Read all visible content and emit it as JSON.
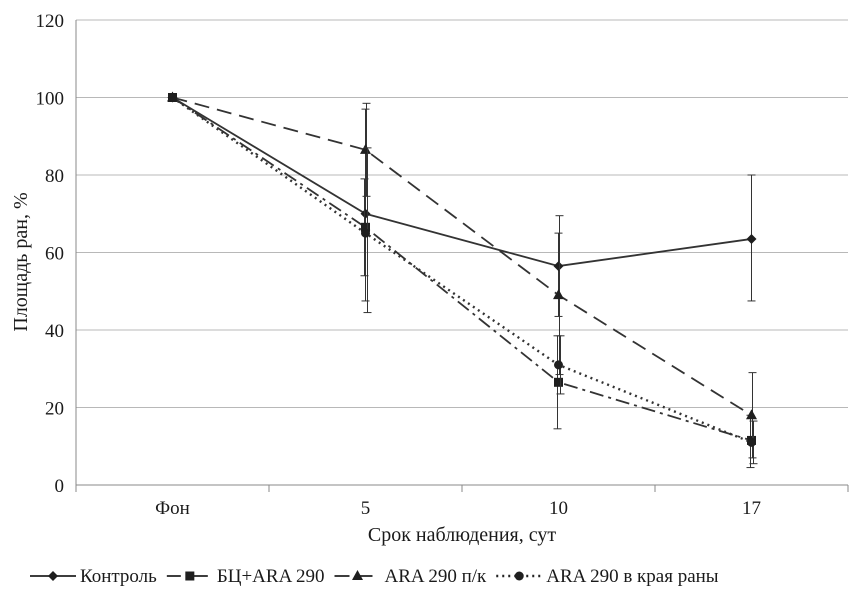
{
  "chart_data": {
    "type": "line",
    "title": "",
    "xlabel": "Срок наблюдения, сут",
    "ylabel": "Площадь ран, %",
    "categories": [
      "Фон",
      "5",
      "10",
      "17"
    ],
    "ylim": [
      0,
      120
    ],
    "yticks": [
      0,
      20,
      40,
      60,
      80,
      100,
      120
    ],
    "grid": true,
    "legend_position": "bottom",
    "series": [
      {
        "name": "Контроль",
        "values": [
          100,
          70,
          56.5,
          63.5
        ],
        "error_low": [
          null,
          47.5,
          43.5,
          47.5
        ],
        "error_high": [
          null,
          97,
          65,
          80
        ],
        "marker": "diamond",
        "dash": "solid",
        "color": "#333333"
      },
      {
        "name": "БЦ+ARA 290",
        "values": [
          100,
          66.5,
          26.5,
          11.5
        ],
        "error_low": [
          null,
          54,
          14.5,
          4.5
        ],
        "error_high": [
          null,
          79,
          38.5,
          18
        ],
        "marker": "square",
        "dash": "dashdot",
        "color": "#333333"
      },
      {
        "name": "ARA 290 п/к",
        "values": [
          100,
          86.5,
          49,
          18
        ],
        "error_low": [
          null,
          74.5,
          28.5,
          7
        ],
        "error_high": [
          null,
          98.5,
          69.5,
          29
        ],
        "marker": "triangle",
        "dash": "dash",
        "color": "#333333"
      },
      {
        "name": "ARA 290 в края раны",
        "values": [
          100,
          65,
          31,
          11
        ],
        "error_low": [
          null,
          44.5,
          23.5,
          5.5
        ],
        "error_high": [
          null,
          87,
          38.5,
          16.5
        ],
        "marker": "circle",
        "dash": "dot",
        "color": "#333333"
      }
    ]
  }
}
